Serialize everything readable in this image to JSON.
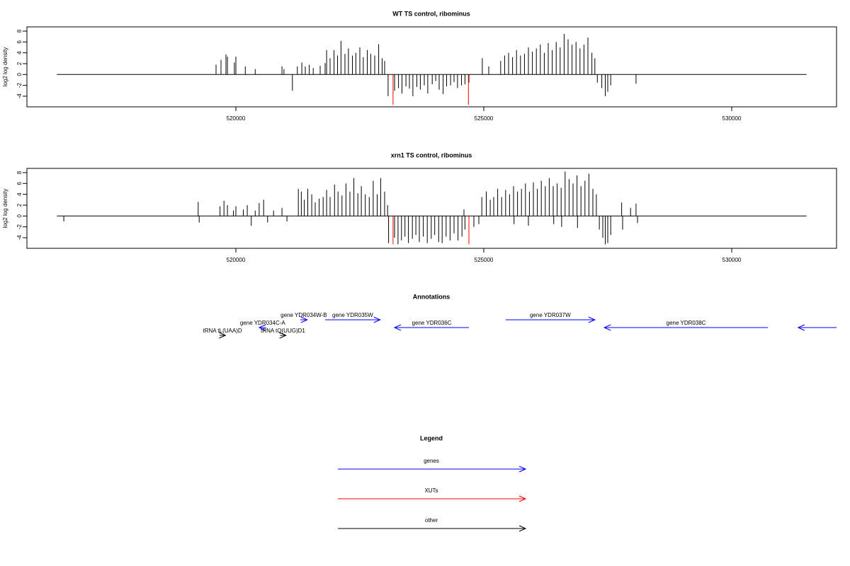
{
  "chart_data": [
    {
      "type": "spikes",
      "title": "WT TS control, ribominus",
      "y_label": "log2 log density",
      "xlim": [
        515786,
        532114
      ],
      "xticks": [
        520000,
        525000,
        530000
      ],
      "ylim": [
        -5.96,
        8.78
      ],
      "yticks": [
        -4,
        -2,
        0,
        2,
        4,
        6,
        8
      ],
      "series": [
        {
          "color": "#000000",
          "x": [
            519600,
            519700,
            519800,
            519830,
            519970,
            520000,
            520190,
            520390,
            520930,
            520970,
            521140,
            521240,
            521330,
            521400,
            521480,
            521560,
            521700,
            521800,
            521830,
            521900,
            521980,
            522050,
            522120,
            522200,
            522270,
            522350,
            522420,
            522500,
            522570,
            522650,
            522720,
            522800,
            522880,
            522950,
            523000,
            523070,
            523200,
            523280,
            523350,
            523430,
            523500,
            523570,
            523650,
            523720,
            523800,
            523870,
            523960,
            524030,
            524100,
            524180,
            524250,
            524330,
            524400,
            524470,
            524550,
            524620,
            524700,
            524970,
            525100,
            525340,
            525420,
            525500,
            525580,
            525660,
            525740,
            525820,
            525900,
            525980,
            526060,
            526140,
            526220,
            526300,
            526380,
            526460,
            526540,
            526620,
            526700,
            526780,
            526860,
            526940,
            527020,
            527100,
            527180,
            527240,
            527290,
            527380,
            527450,
            527500,
            527560,
            528070
          ],
          "values": [
            1.8,
            2.7,
            3.7,
            3.3,
            2.2,
            3.3,
            1.5,
            1,
            1.5,
            1,
            -3,
            1.5,
            2.2,
            1.5,
            1.8,
            1.2,
            1.6,
            2.1,
            4.5,
            3,
            4.5,
            3.5,
            6.2,
            3.8,
            4.8,
            3.5,
            4,
            5,
            3.2,
            4.5,
            3.8,
            3.5,
            5.6,
            3,
            2.5,
            -4,
            -3,
            -2.5,
            -3.5,
            -2.2,
            -2.6,
            -4,
            -2.3,
            -2.8,
            -2,
            -3.5,
            -1.8,
            -1.2,
            -2.8,
            -3.6,
            -2.2,
            -2,
            -1.4,
            -2.5,
            -2,
            -1.8,
            -1.5,
            3,
            1.5,
            2.5,
            3.5,
            4,
            3.2,
            4.5,
            3.5,
            3.8,
            5,
            4.2,
            4.8,
            5.5,
            4,
            5.8,
            4.5,
            6,
            5,
            7.5,
            6.5,
            5.5,
            6,
            4.8,
            5.5,
            6.8,
            4,
            3,
            -1.5,
            -2.5,
            -4,
            -3.2,
            -2,
            -1.7
          ]
        },
        {
          "color": "#ff0000",
          "x": [
            523170,
            524690
          ],
          "values": [
            -5.6,
            -5.6
          ]
        }
      ]
    },
    {
      "type": "spikes",
      "title": "xrn1 TS control, ribominus",
      "y_label": "log2 log density",
      "xlim": [
        515786,
        532114
      ],
      "xticks": [
        520000,
        525000,
        530000
      ],
      "ylim": [
        -5.96,
        8.78
      ],
      "yticks": [
        -4,
        -2,
        0,
        2,
        4,
        6,
        8
      ],
      "series": [
        {
          "color": "#000000",
          "x": [
            516530,
            519240,
            519260,
            519680,
            519760,
            519830,
            519950,
            520000,
            520150,
            520230,
            520310,
            520390,
            520470,
            520560,
            520640,
            520760,
            520930,
            521030,
            521260,
            521320,
            521380,
            521450,
            521530,
            521600,
            521680,
            521760,
            521830,
            521900,
            521990,
            522060,
            522140,
            522220,
            522300,
            522380,
            522460,
            522530,
            522610,
            522690,
            522770,
            522850,
            522920,
            523000,
            523060,
            523080,
            523200,
            523270,
            523340,
            523410,
            523480,
            523560,
            523630,
            523700,
            523780,
            523860,
            523940,
            524010,
            524090,
            524160,
            524240,
            524320,
            524400,
            524480,
            524560,
            524600,
            524620,
            524800,
            524900,
            524960,
            525050,
            525130,
            525200,
            525280,
            525360,
            525440,
            525520,
            525600,
            525610,
            525680,
            525760,
            525840,
            525900,
            525920,
            526000,
            526080,
            526160,
            526240,
            526320,
            526400,
            526410,
            526480,
            526560,
            526570,
            526640,
            526720,
            526800,
            526880,
            526890,
            526960,
            527040,
            527120,
            527200,
            527270,
            527330,
            527400,
            527450,
            527500,
            527560,
            527780,
            527800,
            527960,
            528070,
            528100
          ],
          "values": [
            -1,
            2.6,
            -1.2,
            1.8,
            2.8,
            2,
            1,
            1.8,
            1.2,
            2,
            -1.8,
            1,
            2.4,
            3,
            -1.2,
            1,
            1.5,
            -1,
            5,
            4.5,
            3,
            5,
            4,
            2.5,
            3.2,
            3.5,
            4.8,
            3.5,
            5.8,
            4.5,
            3.8,
            6,
            4.5,
            7,
            4.2,
            5.5,
            4,
            3.5,
            6.5,
            4,
            7,
            4.5,
            2,
            -5,
            -4,
            -5.2,
            -4.5,
            -3.8,
            -5,
            -4.2,
            -3.5,
            -4.8,
            -3.8,
            -5,
            -4.2,
            -3.5,
            -4.8,
            -5,
            -3.8,
            -4.5,
            -3.2,
            -4.5,
            -3.8,
            1.2,
            -2.5,
            -2,
            -1.5,
            3.5,
            4.5,
            3,
            3.5,
            5,
            3.5,
            4.8,
            4,
            5.5,
            -1.5,
            4.5,
            5,
            6,
            -1.8,
            4.5,
            6.2,
            5,
            6.5,
            5.5,
            7,
            5.5,
            -1.5,
            6,
            5.2,
            -2,
            8.2,
            6.8,
            6,
            7.5,
            -2.2,
            5.5,
            6.5,
            7.8,
            5,
            4,
            -2.5,
            -4,
            -5.2,
            -5,
            -3.5,
            2.5,
            -2.5,
            1.5,
            2.3,
            -1.3
          ]
        },
        {
          "color": "#ff0000",
          "x": [
            523170,
            524700
          ],
          "values": [
            -5.2,
            -5.2
          ]
        }
      ]
    },
    {
      "type": "annotation",
      "title": "Annotations",
      "xlim": [
        515786,
        532114
      ],
      "items": [
        {
          "label": "tRNA tL(UAA)D",
          "kind": "other",
          "strand": "+",
          "start": 519670,
          "end": 519790
        },
        {
          "label": "gene YDR034C-A",
          "kind": "genes",
          "strand": "-",
          "start": 520470,
          "end": 520610
        },
        {
          "label": "tRNA tQ(UUG)D1",
          "kind": "other",
          "strand": "+",
          "start": 520890,
          "end": 521010
        },
        {
          "label": "gene YDR034W-B",
          "kind": "genes",
          "strand": "+",
          "start": 521300,
          "end": 521440
        },
        {
          "label": "gene YDR035W",
          "kind": "genes",
          "strand": "+",
          "start": 521800,
          "end": 522910
        },
        {
          "label": "gene YDR036C",
          "kind": "genes",
          "strand": "-",
          "start": 523200,
          "end": 524700
        },
        {
          "label": "gene YDR037W",
          "kind": "genes",
          "strand": "+",
          "start": 525440,
          "end": 527240
        },
        {
          "label": "gene YDR038C",
          "kind": "genes",
          "strand": "-",
          "start": 527430,
          "end": 530730
        },
        {
          "kind": "genes",
          "strand": "-",
          "start": 531340,
          "end": 532500
        }
      ]
    }
  ],
  "legend": {
    "title": "Legend",
    "entries": [
      {
        "name": "genes",
        "color": "#0000ff"
      },
      {
        "name": "XUTs",
        "color": "#ff0000"
      },
      {
        "name": "other",
        "color": "#000000"
      }
    ]
  }
}
